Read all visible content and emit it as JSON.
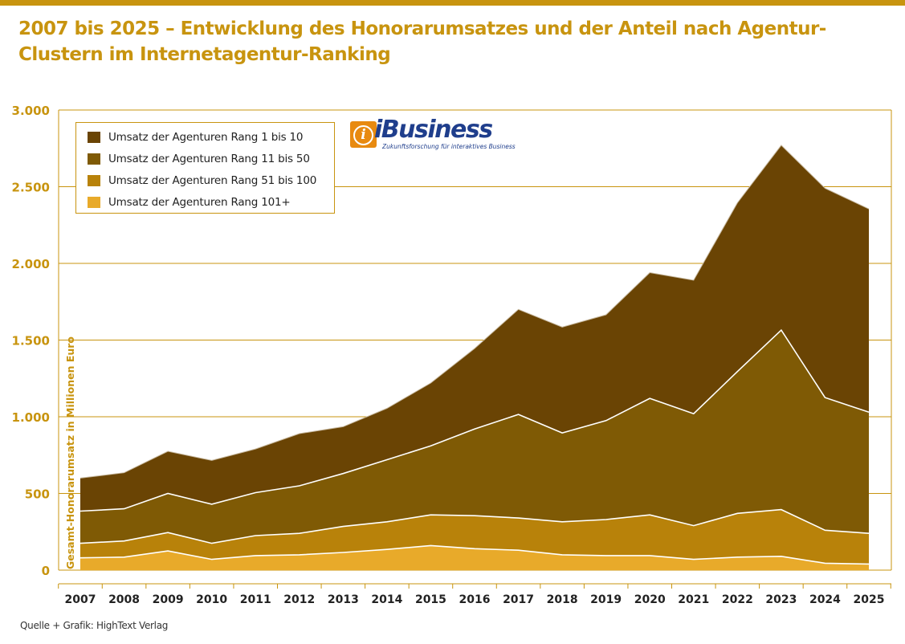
{
  "title": "2007 bis 2025 – Entwicklung des Honorarumsatzes und der Anteil nach Agentur-Clustern im Internetagentur-Ranking",
  "source": "Quelle + Grafik: HighText Verlag",
  "logo": {
    "name": "iBusiness",
    "tagline": "Zukunftsforschung für interaktives Business",
    "colors": {
      "badge": "#e88a10",
      "text": "#1f3e8c"
    }
  },
  "chart_data": {
    "type": "area",
    "stacked": true,
    "ylabel": "Gesamt-Honorarumsatz in Millionen Euro",
    "xlabel": "",
    "ylim": [
      0,
      3000
    ],
    "yticks": [
      0,
      500,
      1000,
      1500,
      2000,
      2500,
      3000
    ],
    "ytick_labels": [
      "0",
      "500",
      "1.000",
      "1.500",
      "2.000",
      "2.500",
      "3.000"
    ],
    "grid": true,
    "legend_position": "top-left",
    "categories": [
      "2007",
      "2008",
      "2009",
      "2010",
      "2011",
      "2012",
      "2013",
      "2014",
      "2015",
      "2016",
      "2017",
      "2018",
      "2019",
      "2020",
      "2021",
      "2022",
      "2023",
      "2024",
      "2025"
    ],
    "series": [
      {
        "name": "Umsatz der Agenturen Rang 101+",
        "color": "#e8aa2a",
        "values": [
          80,
          85,
          125,
          70,
          95,
          100,
          115,
          135,
          160,
          140,
          130,
          100,
          95,
          95,
          70,
          85,
          90,
          45,
          40
        ]
      },
      {
        "name": "Umsatz der Agenturen Rang 51 bis 100",
        "color": "#b8820a",
        "values": [
          95,
          105,
          120,
          105,
          130,
          140,
          170,
          180,
          200,
          215,
          210,
          215,
          235,
          265,
          220,
          285,
          305,
          215,
          200
        ]
      },
      {
        "name": "Umsatz der Agenturen Rang 11 bis 50",
        "color": "#7f5a05",
        "values": [
          210,
          210,
          255,
          255,
          280,
          310,
          345,
          405,
          450,
          565,
          675,
          580,
          645,
          760,
          730,
          925,
          1170,
          865,
          790
        ]
      },
      {
        "name": "Umsatz der Agenturen Rang 1 bis 10",
        "color": "#6a4404",
        "values": [
          215,
          235,
          275,
          285,
          285,
          340,
          305,
          335,
          410,
          525,
          685,
          690,
          690,
          820,
          870,
          1100,
          1205,
          1365,
          1325
        ]
      }
    ],
    "legend_order": [
      "Umsatz der Agenturen Rang 1 bis 10",
      "Umsatz der Agenturen Rang 11 bis 50",
      "Umsatz der Agenturen Rang 51 bis 100",
      "Umsatz der Agenturen Rang 101+"
    ],
    "colors": {
      "axis_text": "#c8940f",
      "gridline": "#c8940f",
      "year_text": "#222222"
    }
  }
}
